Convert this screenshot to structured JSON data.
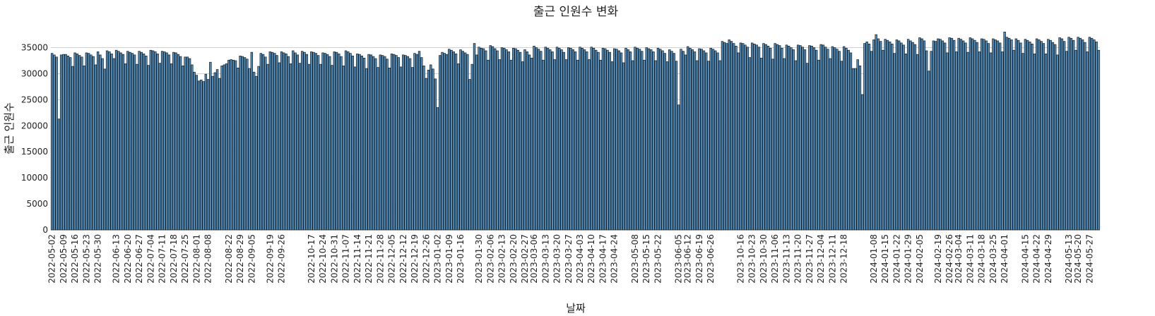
{
  "chart_data": {
    "type": "bar",
    "title": "출근 인원수 변화",
    "x_label": "날짜",
    "y_label": "출근 인원수",
    "color": "#4f8fc0",
    "edgecolor": "#1a1a1a",
    "grid": true,
    "ylim": [
      0,
      39000
    ],
    "yticks": [
      0,
      5000,
      10000,
      15000,
      20000,
      25000,
      30000,
      35000
    ],
    "categories": [
      "2022-05-02",
      null,
      null,
      null,
      null,
      "2022-05-09",
      null,
      null,
      null,
      null,
      "2022-05-16",
      null,
      null,
      null,
      null,
      "2022-05-23",
      null,
      null,
      null,
      null,
      "2022-05-30",
      null,
      null,
      null,
      null,
      null,
      null,
      null,
      "2022-06-13",
      null,
      null,
      null,
      null,
      "2022-06-20",
      null,
      null,
      null,
      null,
      "2022-06-27",
      null,
      null,
      null,
      null,
      "2022-07-04",
      null,
      null,
      null,
      null,
      "2022-07-11",
      null,
      null,
      null,
      null,
      "2022-07-18",
      null,
      null,
      null,
      null,
      "2022-07-25",
      null,
      null,
      null,
      null,
      "2022-08-01",
      null,
      null,
      null,
      null,
      "2022-08-08",
      null,
      null,
      null,
      null,
      null,
      null,
      null,
      null,
      "2022-08-22",
      null,
      null,
      null,
      null,
      "2022-08-29",
      null,
      null,
      null,
      null,
      "2022-09-05",
      null,
      null,
      null,
      null,
      null,
      null,
      null,
      "2022-09-19",
      null,
      null,
      null,
      null,
      "2022-09-26",
      null,
      null,
      null,
      null,
      null,
      null,
      null,
      null,
      null,
      null,
      null,
      null,
      "2022-10-17",
      null,
      null,
      null,
      null,
      "2022-10-24",
      null,
      null,
      null,
      null,
      "2022-10-31",
      null,
      null,
      null,
      null,
      "2022-11-07",
      null,
      null,
      null,
      null,
      "2022-11-14",
      null,
      null,
      null,
      null,
      "2022-11-21",
      null,
      null,
      null,
      null,
      "2022-11-28",
      null,
      null,
      null,
      null,
      "2022-12-05",
      null,
      null,
      null,
      null,
      "2022-12-12",
      null,
      null,
      null,
      null,
      "2022-12-19",
      null,
      null,
      null,
      null,
      "2022-12-26",
      null,
      null,
      null,
      null,
      "2023-01-02",
      null,
      null,
      null,
      null,
      "2023-01-09",
      null,
      null,
      null,
      null,
      "2023-01-16",
      null,
      null,
      null,
      null,
      null,
      null,
      null,
      "2023-01-30",
      null,
      null,
      null,
      null,
      "2023-02-06",
      null,
      null,
      null,
      null,
      "2023-02-13",
      null,
      null,
      null,
      null,
      "2023-02-20",
      null,
      null,
      null,
      null,
      "2023-02-27",
      null,
      null,
      null,
      "2023-03-06",
      null,
      null,
      null,
      null,
      "2023-03-13",
      null,
      null,
      null,
      null,
      "2023-03-20",
      null,
      null,
      null,
      null,
      "2023-03-27",
      null,
      null,
      null,
      null,
      "2023-04-03",
      null,
      null,
      null,
      null,
      "2023-04-10",
      null,
      null,
      null,
      null,
      "2023-04-17",
      null,
      null,
      null,
      null,
      "2023-04-24",
      null,
      null,
      null,
      null,
      null,
      null,
      null,
      null,
      "2023-05-08",
      null,
      null,
      null,
      null,
      "2023-05-15",
      null,
      null,
      null,
      null,
      "2023-05-22",
      null,
      null,
      null,
      null,
      null,
      null,
      null,
      null,
      "2023-06-05",
      null,
      null,
      null,
      "2023-06-12",
      null,
      null,
      null,
      null,
      "2023-06-19",
      null,
      null,
      null,
      null,
      "2023-06-26",
      null,
      null,
      null,
      null,
      null,
      null,
      null,
      null,
      null,
      null,
      null,
      null,
      "2023-10-16",
      null,
      null,
      null,
      null,
      "2023-10-23",
      null,
      null,
      null,
      null,
      "2023-10-30",
      null,
      null,
      null,
      null,
      "2023-11-06",
      null,
      null,
      null,
      null,
      "2023-11-13",
      null,
      null,
      null,
      null,
      "2023-11-20",
      null,
      null,
      null,
      null,
      "2023-11-27",
      null,
      null,
      null,
      null,
      "2023-12-04",
      null,
      null,
      null,
      null,
      "2023-12-11",
      null,
      null,
      null,
      null,
      "2023-12-18",
      null,
      null,
      null,
      null,
      null,
      null,
      null,
      null,
      null,
      null,
      null,
      null,
      "2024-01-08",
      null,
      null,
      null,
      null,
      "2024-01-15",
      null,
      null,
      null,
      null,
      "2024-01-22",
      null,
      null,
      null,
      null,
      "2024-01-29",
      null,
      null,
      null,
      null,
      "2024-02-05",
      null,
      null,
      null,
      null,
      null,
      null,
      null,
      "2024-02-19",
      null,
      null,
      null,
      null,
      "2024-02-26",
      null,
      null,
      null,
      "2024-03-04",
      null,
      null,
      null,
      null,
      "2024-03-11",
      null,
      null,
      null,
      null,
      "2024-03-18",
      null,
      null,
      null,
      null,
      "2024-03-25",
      null,
      null,
      null,
      null,
      "2024-04-01",
      null,
      null,
      null,
      null,
      null,
      null,
      null,
      null,
      "2024-04-15",
      null,
      null,
      null,
      null,
      "2024-04-22",
      null,
      null,
      null,
      null,
      "2024-04-29",
      null,
      null,
      null,
      null,
      null,
      null,
      null,
      null,
      "2024-05-13",
      null,
      null,
      null,
      "2024-05-20",
      null,
      null,
      null,
      null,
      "2024-05-27",
      null,
      null,
      null,
      null
    ],
    "values": [
      33900,
      33600,
      33200,
      21300,
      33600,
      33700,
      33700,
      33400,
      33100,
      31400,
      34000,
      33800,
      33500,
      33200,
      31500,
      34000,
      33900,
      33600,
      33300,
      31700,
      34200,
      33600,
      32900,
      30900,
      34400,
      34200,
      33800,
      32900,
      34500,
      34300,
      34000,
      33700,
      31900,
      34300,
      34100,
      33900,
      33600,
      31800,
      34300,
      34100,
      33800,
      33400,
      31600,
      34500,
      34400,
      34200,
      33800,
      32000,
      34300,
      34200,
      34000,
      33600,
      31900,
      34100,
      34000,
      33700,
      33300,
      31500,
      33200,
      33200,
      32900,
      31700,
      30300,
      29700,
      28600,
      28800,
      28500,
      29900,
      28900,
      32200,
      29500,
      30200,
      30800,
      29100,
      31500,
      31700,
      31900,
      32600,
      32700,
      32600,
      32500,
      31100,
      33400,
      33300,
      33100,
      32800,
      31000,
      34100,
      30300,
      29500,
      31400,
      33900,
      33700,
      33200,
      31800,
      34200,
      34100,
      33900,
      33500,
      32100,
      34200,
      34000,
      33800,
      33300,
      31900,
      34400,
      34000,
      33600,
      32000,
      34300,
      34100,
      33700,
      31800,
      34200,
      34100,
      33900,
      33500,
      31800,
      34000,
      33900,
      33700,
      33300,
      31600,
      34200,
      34100,
      33800,
      33300,
      31500,
      34400,
      34200,
      33900,
      33400,
      31300,
      33800,
      33700,
      33400,
      33000,
      31000,
      33700,
      33600,
      33300,
      32900,
      31200,
      33600,
      33500,
      33300,
      32800,
      31100,
      33800,
      33700,
      33500,
      33100,
      31300,
      33600,
      33500,
      33300,
      32900,
      31200,
      33900,
      33700,
      34300,
      33100,
      31500,
      29100,
      30700,
      31700,
      30900,
      29000,
      23500,
      33500,
      34100,
      33900,
      33700,
      34700,
      34500,
      34200,
      33800,
      31900,
      34600,
      34300,
      34000,
      33700,
      28900,
      31800,
      35800,
      33600,
      35100,
      34900,
      34800,
      34400,
      32600,
      35400,
      35200,
      34800,
      34400,
      32700,
      35000,
      34900,
      34600,
      34200,
      32600,
      34900,
      34800,
      34500,
      34100,
      32300,
      34600,
      34200,
      33600,
      33000,
      35300,
      35000,
      34700,
      34300,
      32600,
      35100,
      34900,
      34600,
      34200,
      32700,
      35100,
      34900,
      34600,
      34100,
      32700,
      35000,
      34900,
      34600,
      34200,
      32600,
      35100,
      34900,
      34600,
      34200,
      32700,
      35100,
      34900,
      34500,
      34100,
      32600,
      34900,
      34800,
      34500,
      34100,
      32300,
      34800,
      34700,
      34400,
      34000,
      32100,
      34900,
      34600,
      34200,
      32500,
      35100,
      34900,
      34700,
      34300,
      32600,
      35000,
      34800,
      34600,
      34200,
      32500,
      34900,
      34700,
      34400,
      33900,
      32300,
      34600,
      34300,
      33900,
      32400,
      24000,
      34700,
      34300,
      33600,
      35200,
      34900,
      34600,
      34200,
      32500,
      34800,
      34700,
      34400,
      34000,
      32400,
      34900,
      34700,
      34400,
      34000,
      32500,
      36200,
      36000,
      35800,
      36500,
      36200,
      35800,
      35300,
      34000,
      35900,
      35800,
      35500,
      35100,
      33100,
      35900,
      35700,
      35500,
      35100,
      33000,
      35800,
      35600,
      35300,
      34900,
      32800,
      35800,
      35600,
      35400,
      34900,
      32900,
      35500,
      35300,
      35000,
      34600,
      32500,
      35500,
      35400,
      35100,
      34600,
      32000,
      35400,
      35300,
      35000,
      34500,
      32600,
      35600,
      35500,
      35100,
      34700,
      32900,
      35200,
      35000,
      34700,
      34300,
      32400,
      35200,
      34900,
      34500,
      34000,
      31000,
      31000,
      32700,
      31500,
      26000,
      35800,
      36100,
      35700,
      34300,
      36500,
      37500,
      36700,
      36200,
      34500,
      36600,
      36400,
      36100,
      35700,
      33900,
      36500,
      36300,
      35900,
      35500,
      33800,
      36600,
      36300,
      36000,
      35600,
      33700,
      36900,
      36700,
      36300,
      34400,
      30500,
      34300,
      36300,
      36200,
      36700,
      36600,
      36300,
      35900,
      34000,
      36900,
      36800,
      36400,
      34200,
      36800,
      36600,
      36300,
      35900,
      34100,
      36900,
      36700,
      36400,
      36000,
      34200,
      36700,
      36600,
      36300,
      35800,
      34000,
      36700,
      36500,
      36300,
      35900,
      34200,
      38000,
      37000,
      36800,
      36500,
      34500,
      36700,
      36400,
      35900,
      33900,
      36600,
      36400,
      36100,
      35700,
      33800,
      36700,
      36500,
      36200,
      35800,
      33800,
      36600,
      36400,
      36000,
      35600,
      33600,
      36900,
      36700,
      36200,
      34300,
      37000,
      36800,
      36400,
      34500,
      37000,
      36800,
      36500,
      36000,
      34200,
      37000,
      36800,
      36500,
      36100,
      34500
    ]
  }
}
